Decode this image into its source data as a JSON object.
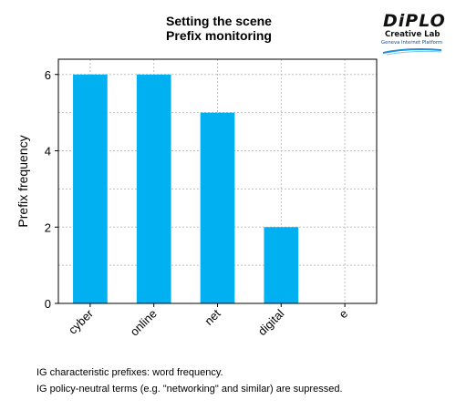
{
  "chart_data": {
    "type": "bar",
    "title": "Setting the scene",
    "subtitle": "Prefix monitoring",
    "xlabel": "",
    "ylabel": "Prefix frequency",
    "categories": [
      "cyber",
      "online",
      "net",
      "digital",
      "e"
    ],
    "values": [
      6,
      6,
      5,
      2,
      0
    ],
    "ylim": [
      0,
      6.4
    ],
    "yticks": [
      0,
      2,
      4,
      6
    ],
    "grid": true,
    "bar_color": "#00b0f0"
  },
  "logo": {
    "name": "DiPLO",
    "line1": "Creative Lab",
    "line2": "Geneva Internet Platform"
  },
  "footnotes": [
    "IG characteristic prefixes: word frequency.",
    "IG policy-neutral terms (e.g. \"networking\" and similar) are supressed."
  ]
}
